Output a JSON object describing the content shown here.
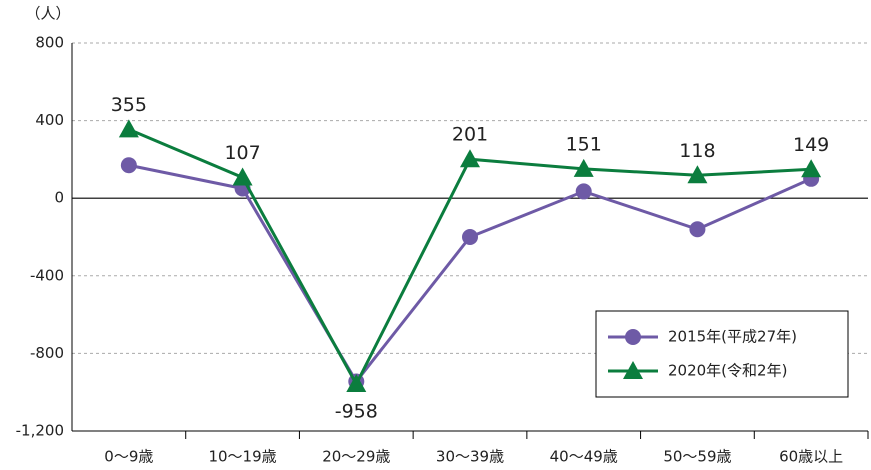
{
  "chart_data": {
    "type": "line",
    "y_unit": "（人）",
    "categories": [
      "0～9歳",
      "10～19歳",
      "20～29歳",
      "30～39歳",
      "40～49歳",
      "50～59歳",
      "60歳以上"
    ],
    "series": [
      {
        "name": "2015年(平成27年)",
        "color": "#6e5aa6",
        "marker": "circle",
        "values": [
          170,
          50,
          -945,
          -200,
          35,
          -160,
          100
        ]
      },
      {
        "name": "2020年(令和2年)",
        "color": "#0b7d3e",
        "marker": "triangle",
        "values": [
          355,
          107,
          -958,
          201,
          151,
          118,
          149
        ],
        "data_labels": true
      }
    ],
    "ylim": [
      -1200,
      800
    ],
    "yticks": [
      {
        "value": -1200,
        "label": "-1,200"
      },
      -800,
      -400,
      0,
      400,
      800
    ],
    "grid": true,
    "legend": "lower right"
  }
}
